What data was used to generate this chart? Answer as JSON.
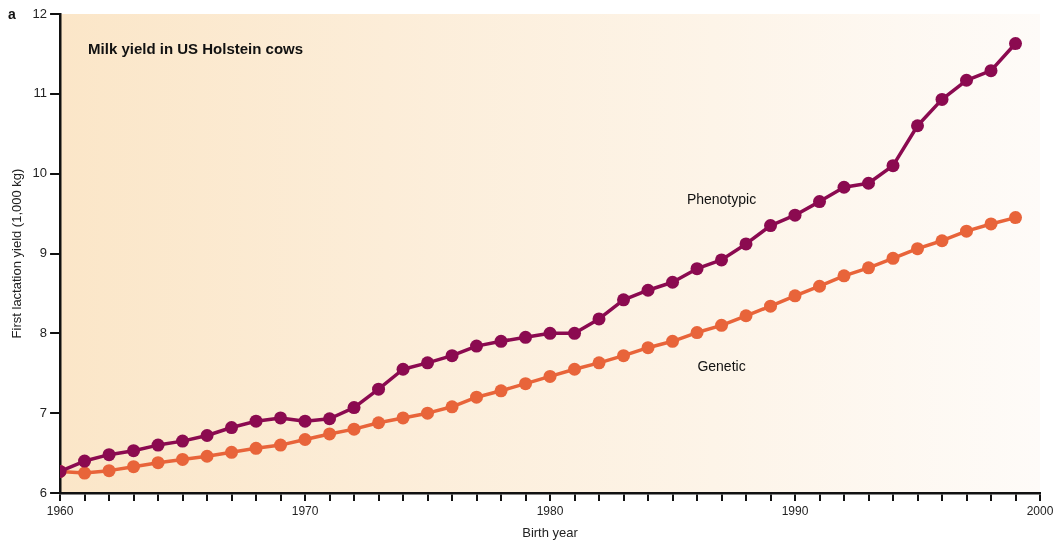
{
  "chart_data": {
    "type": "line",
    "title": "Milk yield in US Holstein cows",
    "xlabel": "Birth year",
    "ylabel": "First lactation yield (1,000 kg)",
    "annotations": [
      "a"
    ],
    "x": [
      1960,
      1961,
      1962,
      1963,
      1964,
      1965,
      1966,
      1967,
      1968,
      1969,
      1970,
      1971,
      1972,
      1973,
      1974,
      1975,
      1976,
      1977,
      1978,
      1979,
      1980,
      1981,
      1982,
      1983,
      1984,
      1985,
      1986,
      1987,
      1988,
      1989,
      1990,
      1991,
      1992,
      1993,
      1994,
      1995,
      1996,
      1997,
      1998,
      1999
    ],
    "series": [
      {
        "name": "Phenotypic",
        "color": "#8b0a50",
        "values": [
          6.27,
          6.4,
          6.48,
          6.53,
          6.6,
          6.65,
          6.72,
          6.82,
          6.9,
          6.94,
          6.9,
          6.93,
          7.07,
          7.3,
          7.55,
          7.63,
          7.72,
          7.84,
          7.9,
          7.95,
          8.0,
          8.0,
          8.18,
          8.42,
          8.54,
          8.64,
          8.81,
          8.92,
          9.12,
          9.35,
          9.48,
          9.65,
          9.83,
          9.88,
          10.1,
          10.6,
          10.93,
          11.17,
          11.29,
          11.63
        ]
      },
      {
        "name": "Genetic",
        "color": "#e8643a",
        "values": [
          6.27,
          6.25,
          6.28,
          6.33,
          6.38,
          6.42,
          6.46,
          6.51,
          6.56,
          6.6,
          6.67,
          6.74,
          6.8,
          6.88,
          6.94,
          7.0,
          7.08,
          7.2,
          7.28,
          7.37,
          7.46,
          7.55,
          7.63,
          7.72,
          7.82,
          7.9,
          8.01,
          8.1,
          8.22,
          8.34,
          8.47,
          8.59,
          8.72,
          8.82,
          8.94,
          9.06,
          9.16,
          9.28,
          9.37,
          9.45
        ]
      }
    ],
    "xlim": [
      1960,
      2000
    ],
    "xticks": [
      1960,
      {
        "value": 1961,
        "label": null
      },
      {
        "value": 1962,
        "label": null
      },
      {
        "value": 1963,
        "label": null
      },
      {
        "value": 1964,
        "label": null
      },
      {
        "value": 1965,
        "label": null
      },
      {
        "value": 1966,
        "label": null
      },
      {
        "value": 1967,
        "label": null
      },
      {
        "value": 1968,
        "label": null
      },
      {
        "value": 1969,
        "label": null
      },
      1970,
      {
        "value": 1971,
        "label": null
      },
      {
        "value": 1972,
        "label": null
      },
      {
        "value": 1973,
        "label": null
      },
      {
        "value": 1974,
        "label": null
      },
      {
        "value": 1975,
        "label": null
      },
      {
        "value": 1976,
        "label": null
      },
      {
        "value": 1977,
        "label": null
      },
      {
        "value": 1978,
        "label": null
      },
      {
        "value": 1979,
        "label": null
      },
      1980,
      {
        "value": 1981,
        "label": null
      },
      {
        "value": 1982,
        "label": null
      },
      {
        "value": 1983,
        "label": null
      },
      {
        "value": 1984,
        "label": null
      },
      {
        "value": 1985,
        "label": null
      },
      {
        "value": 1986,
        "label": null
      },
      {
        "value": 1987,
        "label": null
      },
      {
        "value": 1988,
        "label": null
      },
      {
        "value": 1989,
        "label": null
      },
      1990,
      {
        "value": 1991,
        "label": null
      },
      {
        "value": 1992,
        "label": null
      },
      {
        "value": 1993,
        "label": null
      },
      {
        "value": 1994,
        "label": null
      },
      {
        "value": 1995,
        "label": null
      },
      {
        "value": 1996,
        "label": null
      },
      {
        "value": 1997,
        "label": null
      },
      {
        "value": 1998,
        "label": null
      },
      {
        "value": 1999,
        "label": null
      },
      2000
    ],
    "ylim": [
      6,
      12
    ],
    "yticks": [
      6,
      7,
      8,
      9,
      10,
      11,
      12
    ],
    "grid": false,
    "legend": false,
    "marker": "circle",
    "line_style": "solid"
  }
}
